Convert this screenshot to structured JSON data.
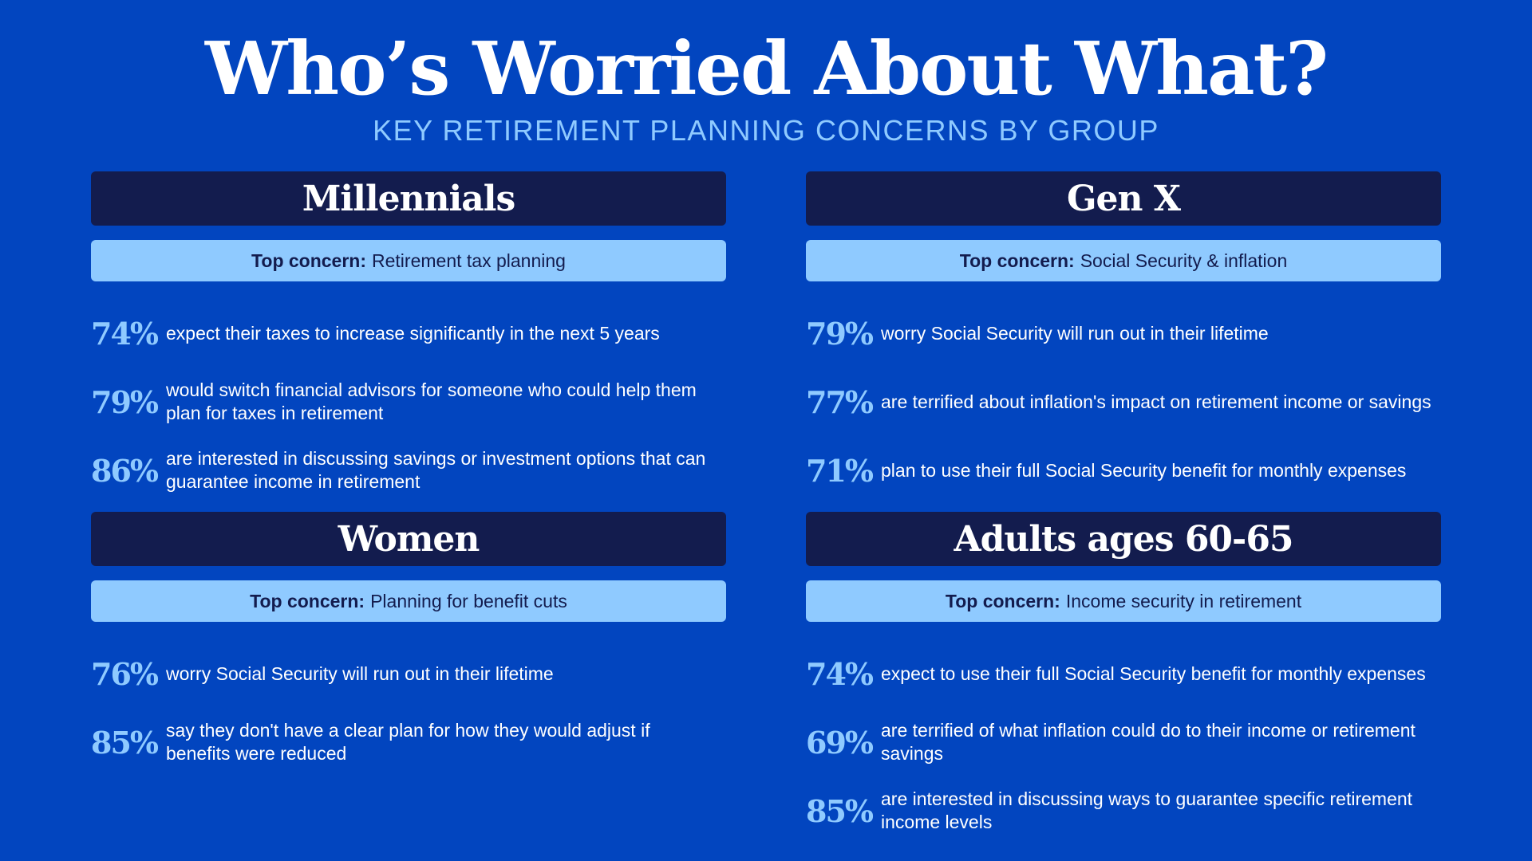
{
  "title": "Who’s Worried About What?",
  "subtitle": "KEY RETIREMENT PLANNING CONCERNS BY GROUP",
  "top_concern_label": "Top concern:",
  "groups": [
    {
      "name": "Millennials",
      "concern": "Retirement tax planning",
      "stats": [
        {
          "pct": "74%",
          "text": "expect their taxes to increase significantly in the next 5 years"
        },
        {
          "pct": "79%",
          "text": "would switch financial advisors for someone who could help them plan for taxes in retirement"
        },
        {
          "pct": "86%",
          "text": "are interested in discussing savings or investment options that can guarantee income in retirement"
        }
      ]
    },
    {
      "name": "Gen X",
      "concern": "Social Security & inflation",
      "stats": [
        {
          "pct": "79%",
          "text": "worry Social Security will run out in their lifetime"
        },
        {
          "pct": "77%",
          "text": "are terrified about inflation's impact on retirement income or savings"
        },
        {
          "pct": "71%",
          "text": "plan to use their full Social Security benefit for monthly expenses"
        }
      ]
    },
    {
      "name": "Women",
      "concern": "Planning for benefit cuts",
      "stats": [
        {
          "pct": "76%",
          "text": "worry Social Security will run out in their lifetime"
        },
        {
          "pct": "85%",
          "text": "say they don't have a clear plan for how they would adjust if benefits were reduced"
        }
      ]
    },
    {
      "name": "Adults ages 60-65",
      "concern": "Income security in retirement",
      "stats": [
        {
          "pct": "74%",
          "text": "expect to use their full Social Security benefit for monthly expenses"
        },
        {
          "pct": "69%",
          "text": "are terrified of what inflation could do to their income or retirement savings"
        },
        {
          "pct": "85%",
          "text": "are interested in discussing ways to guarantee specific retirement income levels"
        }
      ]
    }
  ],
  "colors": {
    "background": "#0245BF",
    "header": "#131C4E",
    "accent": "#8FCAFF",
    "text": "#FFFFFF"
  }
}
